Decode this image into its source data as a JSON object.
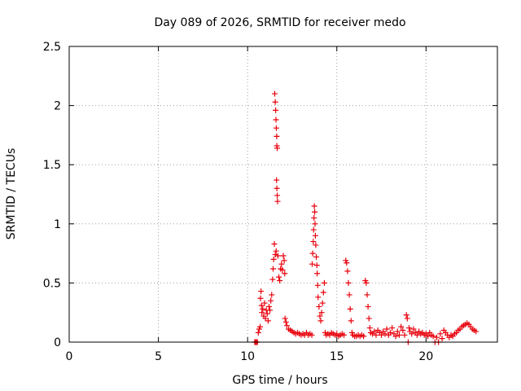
{
  "chart_data": {
    "type": "scatter",
    "title": "Day 089 of 2026, SRMTID for receiver medo",
    "xlabel": "GPS time / hours",
    "ylabel": "SRMTID / TECUs",
    "xlim": [
      0,
      24
    ],
    "ylim": [
      0,
      2.5
    ],
    "grid": true,
    "marker": "+",
    "x_ticks": [
      0,
      5,
      10,
      15,
      20
    ],
    "x_tick_labels": [
      "0",
      "5",
      "10",
      "15",
      "20"
    ],
    "y_ticks": [
      0,
      0.5,
      1,
      1.5,
      2,
      2.5
    ],
    "y_tick_labels": [
      "0",
      "0.5",
      "1",
      "1.5",
      "2",
      "2.5"
    ],
    "series": [
      {
        "name": "SRMTID",
        "color": "#e8000b",
        "points": [
          [
            10.4,
            0.0
          ],
          [
            10.45,
            0.0
          ],
          [
            10.5,
            0.0
          ],
          [
            10.55,
            0.0
          ],
          [
            10.6,
            0.08
          ],
          [
            10.65,
            0.11
          ],
          [
            10.7,
            0.13
          ],
          [
            10.72,
            0.37
          ],
          [
            10.75,
            0.43
          ],
          [
            10.78,
            0.31
          ],
          [
            10.8,
            0.25
          ],
          [
            10.85,
            0.28
          ],
          [
            10.9,
            0.22
          ],
          [
            10.95,
            0.33
          ],
          [
            11.0,
            0.2
          ],
          [
            11.05,
            0.27
          ],
          [
            11.1,
            0.24
          ],
          [
            11.15,
            0.18
          ],
          [
            11.2,
            0.3
          ],
          [
            11.25,
            0.27
          ],
          [
            11.3,
            0.35
          ],
          [
            11.35,
            0.4
          ],
          [
            11.4,
            0.53
          ],
          [
            11.43,
            0.62
          ],
          [
            11.46,
            0.7
          ],
          [
            11.5,
            0.83
          ],
          [
            11.55,
            0.74
          ],
          [
            11.6,
            0.77
          ],
          [
            11.52,
            2.1
          ],
          [
            11.55,
            2.03
          ],
          [
            11.57,
            1.96
          ],
          [
            11.59,
            1.88
          ],
          [
            11.61,
            1.81
          ],
          [
            11.63,
            1.74
          ],
          [
            11.64,
            1.66
          ],
          [
            11.66,
            1.64
          ],
          [
            11.62,
            1.37
          ],
          [
            11.64,
            1.3
          ],
          [
            11.66,
            1.24
          ],
          [
            11.68,
            1.19
          ],
          [
            11.7,
            0.73
          ],
          [
            11.75,
            0.55
          ],
          [
            11.8,
            0.52
          ],
          [
            11.85,
            0.62
          ],
          [
            11.9,
            0.66
          ],
          [
            11.95,
            0.61
          ],
          [
            12.0,
            0.73
          ],
          [
            12.05,
            0.69
          ],
          [
            12.08,
            0.58
          ],
          [
            12.1,
            0.2
          ],
          [
            12.15,
            0.17
          ],
          [
            12.2,
            0.14
          ],
          [
            12.3,
            0.11
          ],
          [
            12.4,
            0.1
          ],
          [
            12.5,
            0.09
          ],
          [
            12.6,
            0.08
          ],
          [
            12.7,
            0.07
          ],
          [
            12.8,
            0.08
          ],
          [
            12.9,
            0.07
          ],
          [
            13.0,
            0.06
          ],
          [
            13.1,
            0.07
          ],
          [
            13.2,
            0.06
          ],
          [
            13.3,
            0.08
          ],
          [
            13.4,
            0.06
          ],
          [
            13.5,
            0.07
          ],
          [
            13.6,
            0.06
          ],
          [
            13.62,
            0.66
          ],
          [
            13.65,
            0.75
          ],
          [
            13.68,
            0.85
          ],
          [
            13.7,
            0.95
          ],
          [
            13.72,
            1.05
          ],
          [
            13.74,
            1.15
          ],
          [
            13.76,
            1.1
          ],
          [
            13.78,
            1.0
          ],
          [
            13.8,
            0.9
          ],
          [
            13.82,
            0.82
          ],
          [
            13.85,
            0.72
          ],
          [
            13.88,
            0.65
          ],
          [
            13.9,
            0.58
          ],
          [
            13.93,
            0.48
          ],
          [
            13.95,
            0.38
          ],
          [
            14.0,
            0.3
          ],
          [
            14.05,
            0.22
          ],
          [
            14.1,
            0.18
          ],
          [
            14.15,
            0.25
          ],
          [
            14.2,
            0.33
          ],
          [
            14.25,
            0.42
          ],
          [
            14.3,
            0.5
          ],
          [
            14.35,
            0.08
          ],
          [
            14.4,
            0.06
          ],
          [
            14.5,
            0.07
          ],
          [
            14.6,
            0.06
          ],
          [
            14.7,
            0.08
          ],
          [
            14.8,
            0.07
          ],
          [
            14.9,
            0.06
          ],
          [
            15.0,
            0.07
          ],
          [
            15.1,
            0.05
          ],
          [
            15.2,
            0.06
          ],
          [
            15.3,
            0.07
          ],
          [
            15.4,
            0.06
          ],
          [
            15.5,
            0.69
          ],
          [
            15.55,
            0.67
          ],
          [
            15.6,
            0.6
          ],
          [
            15.65,
            0.5
          ],
          [
            15.7,
            0.4
          ],
          [
            15.75,
            0.28
          ],
          [
            15.8,
            0.18
          ],
          [
            15.85,
            0.08
          ],
          [
            15.9,
            0.06
          ],
          [
            16.0,
            0.05
          ],
          [
            16.1,
            0.05
          ],
          [
            16.2,
            0.06
          ],
          [
            16.3,
            0.05
          ],
          [
            16.4,
            0.06
          ],
          [
            16.5,
            0.05
          ],
          [
            16.6,
            0.52
          ],
          [
            16.65,
            0.5
          ],
          [
            16.7,
            0.4
          ],
          [
            16.75,
            0.3
          ],
          [
            16.8,
            0.2
          ],
          [
            16.85,
            0.12
          ],
          [
            16.9,
            0.08
          ],
          [
            17.0,
            0.07
          ],
          [
            17.1,
            0.09
          ],
          [
            17.2,
            0.06
          ],
          [
            17.3,
            0.1
          ],
          [
            17.4,
            0.08
          ],
          [
            17.5,
            0.06
          ],
          [
            17.6,
            0.09
          ],
          [
            17.7,
            0.07
          ],
          [
            17.8,
            0.11
          ],
          [
            17.9,
            0.06
          ],
          [
            18.0,
            0.08
          ],
          [
            18.1,
            0.12
          ],
          [
            18.2,
            0.07
          ],
          [
            18.3,
            0.05
          ],
          [
            18.4,
            0.09
          ],
          [
            18.5,
            0.06
          ],
          [
            18.6,
            0.13
          ],
          [
            18.7,
            0.1
          ],
          [
            18.8,
            0.06
          ],
          [
            18.9,
            0.23
          ],
          [
            18.95,
            0.2
          ],
          [
            19.0,
            0.0
          ],
          [
            19.05,
            0.12
          ],
          [
            19.1,
            0.09
          ],
          [
            19.2,
            0.07
          ],
          [
            19.3,
            0.11
          ],
          [
            19.4,
            0.08
          ],
          [
            19.5,
            0.06
          ],
          [
            19.6,
            0.09
          ],
          [
            19.7,
            0.07
          ],
          [
            19.8,
            0.08
          ],
          [
            19.9,
            0.06
          ],
          [
            20.0,
            0.07
          ],
          [
            20.1,
            0.05
          ],
          [
            20.2,
            0.08
          ],
          [
            20.3,
            0.06
          ],
          [
            20.4,
            0.05
          ],
          [
            20.5,
            0.0
          ],
          [
            20.6,
            0.04
          ],
          [
            20.7,
            0.0
          ],
          [
            20.8,
            0.07
          ],
          [
            20.9,
            0.03
          ],
          [
            21.0,
            0.1
          ],
          [
            21.1,
            0.08
          ],
          [
            21.2,
            0.06
          ],
          [
            21.3,
            0.04
          ],
          [
            21.4,
            0.06
          ],
          [
            21.5,
            0.05
          ],
          [
            21.6,
            0.07
          ],
          [
            21.7,
            0.08
          ],
          [
            21.8,
            0.1
          ],
          [
            21.9,
            0.11
          ],
          [
            22.0,
            0.13
          ],
          [
            22.1,
            0.14
          ],
          [
            22.2,
            0.15
          ],
          [
            22.3,
            0.16
          ],
          [
            22.4,
            0.15
          ],
          [
            22.5,
            0.13
          ],
          [
            22.6,
            0.11
          ],
          [
            22.7,
            0.1
          ],
          [
            22.8,
            0.09
          ]
        ]
      }
    ]
  }
}
